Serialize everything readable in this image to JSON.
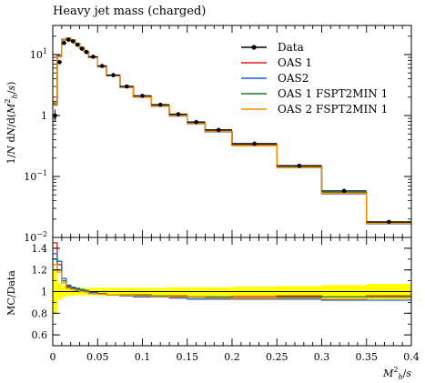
{
  "chart_data": [
    {
      "type": "line",
      "title": "Heavy jet mass (charged)",
      "ylabel": "1/N dN/d(M_h^2/s)",
      "yscale": "log",
      "ylim": [
        0.01,
        30
      ],
      "xlim": [
        0,
        0.4
      ],
      "yticks": [
        {
          "value": 10,
          "label": "10",
          "sup": "1"
        },
        {
          "value": 1,
          "label": "1",
          "sup": ""
        },
        {
          "value": 0.1,
          "label": "10",
          "sup": "−1"
        },
        {
          "value": 0.01,
          "label": "10",
          "sup": "−2"
        }
      ],
      "bin_edges": [
        0,
        0.005,
        0.01,
        0.015,
        0.02,
        0.025,
        0.03,
        0.035,
        0.04,
        0.05,
        0.06,
        0.075,
        0.09,
        0.11,
        0.13,
        0.15,
        0.17,
        0.2,
        0.25,
        0.3,
        0.35,
        0.4
      ],
      "data": {
        "name": "Data",
        "x": [
          0.0025,
          0.0075,
          0.0125,
          0.0175,
          0.0225,
          0.0275,
          0.0325,
          0.0375,
          0.045,
          0.055,
          0.0675,
          0.0825,
          0.1,
          0.12,
          0.14,
          0.16,
          0.185,
          0.225,
          0.275,
          0.325,
          0.375
        ],
        "y": [
          1.0,
          7.5,
          15.5,
          17.5,
          16.5,
          14.5,
          12.5,
          11.0,
          9.2,
          6.5,
          4.6,
          3.0,
          2.1,
          1.5,
          1.05,
          0.78,
          0.58,
          0.345,
          0.15,
          0.058,
          0.018
        ]
      },
      "series": [
        {
          "name": "OAS 1",
          "color": "#e41a1c",
          "values": [
            1.6,
            9.5,
            17.5,
            18.5,
            17.3,
            15.2,
            13.0,
            11.2,
            9.0,
            6.3,
            4.5,
            2.95,
            2.05,
            1.45,
            1.0,
            0.75,
            0.55,
            0.33,
            0.145,
            0.054,
            0.0175
          ]
        },
        {
          "name": "OAS2",
          "color": "#1f5fd6",
          "values": [
            1.7,
            9.8,
            17.8,
            18.7,
            17.4,
            15.3,
            13.1,
            11.3,
            9.1,
            6.35,
            4.5,
            2.9,
            2.0,
            1.42,
            0.98,
            0.73,
            0.54,
            0.32,
            0.14,
            0.052,
            0.0168
          ]
        },
        {
          "name": "OAS 1 FSPT2MIN 1",
          "color": "#1a7f1a",
          "values": [
            1.5,
            9.2,
            17.3,
            18.4,
            17.2,
            15.1,
            12.9,
            11.1,
            8.95,
            6.3,
            4.48,
            2.93,
            2.03,
            1.44,
            0.99,
            0.74,
            0.55,
            0.325,
            0.143,
            0.055,
            0.0172
          ]
        },
        {
          "name": "OAS 2 FSPT2MIN 1",
          "color": "#ff8c00",
          "values": [
            1.55,
            9.3,
            17.4,
            18.5,
            17.3,
            15.2,
            13.0,
            11.2,
            9.0,
            6.3,
            4.5,
            2.92,
            2.02,
            1.43,
            0.985,
            0.735,
            0.545,
            0.322,
            0.141,
            0.053,
            0.017
          ]
        }
      ],
      "legend": "top-right"
    },
    {
      "type": "line",
      "ylabel": "MC/Data",
      "xlabel": "M_h^2/s",
      "ylim": [
        0.5,
        1.5
      ],
      "yticks": [
        0.6,
        0.8,
        1,
        1.2,
        1.4
      ],
      "xticks": [
        0,
        0.05,
        0.1,
        0.15,
        0.2,
        0.25,
        0.3,
        0.35,
        0.4
      ],
      "band_halfwidth": [
        0.2,
        0.08,
        0.05,
        0.04,
        0.04,
        0.035,
        0.035,
        0.035,
        0.035,
        0.035,
        0.035,
        0.035,
        0.035,
        0.035,
        0.04,
        0.04,
        0.04,
        0.045,
        0.05,
        0.06,
        0.07
      ],
      "ratio_series": [
        {
          "name": "OAS 1",
          "color": "#e41a1c",
          "values": [
            1.45,
            1.25,
            1.1,
            1.05,
            1.03,
            1.02,
            1.01,
            1.0,
            0.99,
            0.98,
            0.97,
            0.97,
            0.97,
            0.96,
            0.96,
            0.95,
            0.95,
            0.955,
            0.96,
            0.95,
            0.96
          ]
        },
        {
          "name": "OAS2",
          "color": "#1f5fd6",
          "values": [
            1.35,
            1.28,
            1.12,
            1.06,
            1.04,
            1.03,
            1.02,
            1.01,
            0.99,
            0.98,
            0.97,
            0.96,
            0.95,
            0.95,
            0.94,
            0.93,
            0.93,
            0.93,
            0.93,
            0.92,
            0.92
          ]
        },
        {
          "name": "OAS 1 FSPT2MIN 1",
          "color": "#1a7f1a",
          "values": [
            1.3,
            1.2,
            1.1,
            1.04,
            1.03,
            1.02,
            1.01,
            1.0,
            0.98,
            0.98,
            0.97,
            0.97,
            0.965,
            0.96,
            0.955,
            0.95,
            0.95,
            0.94,
            0.95,
            0.95,
            0.955
          ]
        },
        {
          "name": "OAS 2 FSPT2MIN 1",
          "color": "#ff8c00",
          "values": [
            1.25,
            1.18,
            1.08,
            1.03,
            1.02,
            1.01,
            1.0,
            0.995,
            0.98,
            0.975,
            0.97,
            0.965,
            0.96,
            0.955,
            0.95,
            0.945,
            0.94,
            0.935,
            0.94,
            0.93,
            0.945
          ]
        }
      ]
    }
  ]
}
